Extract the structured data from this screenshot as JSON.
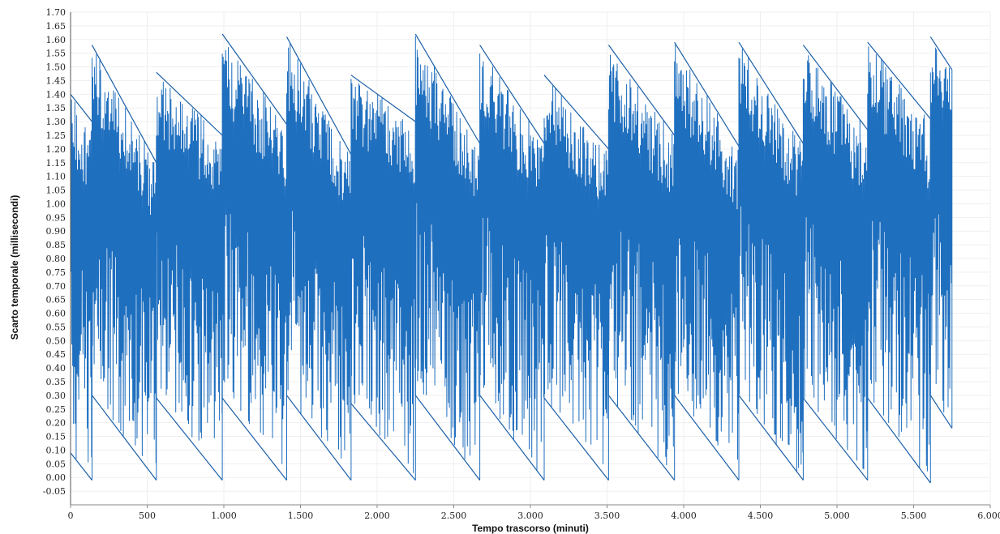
{
  "chart_data": {
    "type": "line",
    "title": "",
    "xlabel": "Tempo trascorso (minuti)",
    "ylabel": "Scarto temporale (millisecondi)",
    "xlim": [
      0,
      6000
    ],
    "ylim": [
      -0.1,
      1.7
    ],
    "x_ticks": [
      0,
      500,
      1000,
      1500,
      2000,
      2500,
      3000,
      3500,
      4000,
      4500,
      5000,
      5500,
      6000
    ],
    "x_tick_labels": [
      "0",
      "500",
      "1.000",
      "1.500",
      "2.000",
      "2.500",
      "3.000",
      "3.500",
      "4.000",
      "4.500",
      "5.000",
      "5.500",
      "6.000"
    ],
    "y_tick_labels": [
      "-0.05",
      "0.00",
      "0.05",
      "0.10",
      "0.15",
      "0.20",
      "0.25",
      "0.30",
      "0.35",
      "0.40",
      "0.45",
      "0.50",
      "0.55",
      "0.60",
      "0.65",
      "0.70",
      "0.75",
      "0.80",
      "0.85",
      "0.90",
      "0.95",
      "1.00",
      "1.05",
      "1.10",
      "1.15",
      "1.20",
      "1.25",
      "1.30",
      "1.35",
      "1.40",
      "1.45",
      "1.50",
      "1.55",
      "1.60",
      "1.65",
      "1.70"
    ],
    "grid": true,
    "series_color": "#1f6fbf",
    "series": [
      {
        "envelope_segments": [
          {
            "x_start": 0,
            "x_end": 140,
            "upper_start": 1.4,
            "upper_end": 1.3,
            "lower_start": 0.09,
            "lower_end": -0.01
          },
          {
            "x_start": 140,
            "x_end": 560,
            "upper_start": 1.58,
            "upper_end": 1.15,
            "lower_start": 0.3,
            "lower_end": -0.01
          },
          {
            "x_start": 560,
            "x_end": 990,
            "upper_start": 1.48,
            "upper_end": 1.25,
            "lower_start": 0.29,
            "lower_end": -0.01
          },
          {
            "x_start": 990,
            "x_end": 1410,
            "upper_start": 1.62,
            "upper_end": 1.29,
            "lower_start": 0.29,
            "lower_end": -0.01
          },
          {
            "x_start": 1410,
            "x_end": 1830,
            "upper_start": 1.61,
            "upper_end": 1.18,
            "lower_start": 0.3,
            "lower_end": -0.01
          },
          {
            "x_start": 1830,
            "x_end": 2250,
            "upper_start": 1.47,
            "upper_end": 1.3,
            "lower_start": 0.27,
            "lower_end": -0.01
          },
          {
            "x_start": 2250,
            "x_end": 2670,
            "upper_start": 1.62,
            "upper_end": 1.22,
            "lower_start": 0.3,
            "lower_end": -0.01
          },
          {
            "x_start": 2670,
            "x_end": 3090,
            "upper_start": 1.58,
            "upper_end": 1.22,
            "lower_start": 0.3,
            "lower_end": -0.01
          },
          {
            "x_start": 3090,
            "x_end": 3510,
            "upper_start": 1.47,
            "upper_end": 1.2,
            "lower_start": 0.29,
            "lower_end": -0.01
          },
          {
            "x_start": 3510,
            "x_end": 3940,
            "upper_start": 1.58,
            "upper_end": 1.25,
            "lower_start": 0.3,
            "lower_end": -0.01
          },
          {
            "x_start": 3940,
            "x_end": 4360,
            "upper_start": 1.59,
            "upper_end": 1.21,
            "lower_start": 0.3,
            "lower_end": -0.01
          },
          {
            "x_start": 4360,
            "x_end": 4780,
            "upper_start": 1.59,
            "upper_end": 1.22,
            "lower_start": 0.3,
            "lower_end": -0.01
          },
          {
            "x_start": 4780,
            "x_end": 5200,
            "upper_start": 1.58,
            "upper_end": 1.27,
            "lower_start": 0.29,
            "lower_end": -0.01
          },
          {
            "x_start": 5200,
            "x_end": 5610,
            "upper_start": 1.59,
            "upper_end": 1.31,
            "lower_start": 0.29,
            "lower_end": -0.02
          },
          {
            "x_start": 5610,
            "x_end": 5750,
            "upper_start": 1.61,
            "upper_end": 1.49,
            "lower_start": 0.3,
            "lower_end": 0.18
          }
        ]
      }
    ]
  }
}
